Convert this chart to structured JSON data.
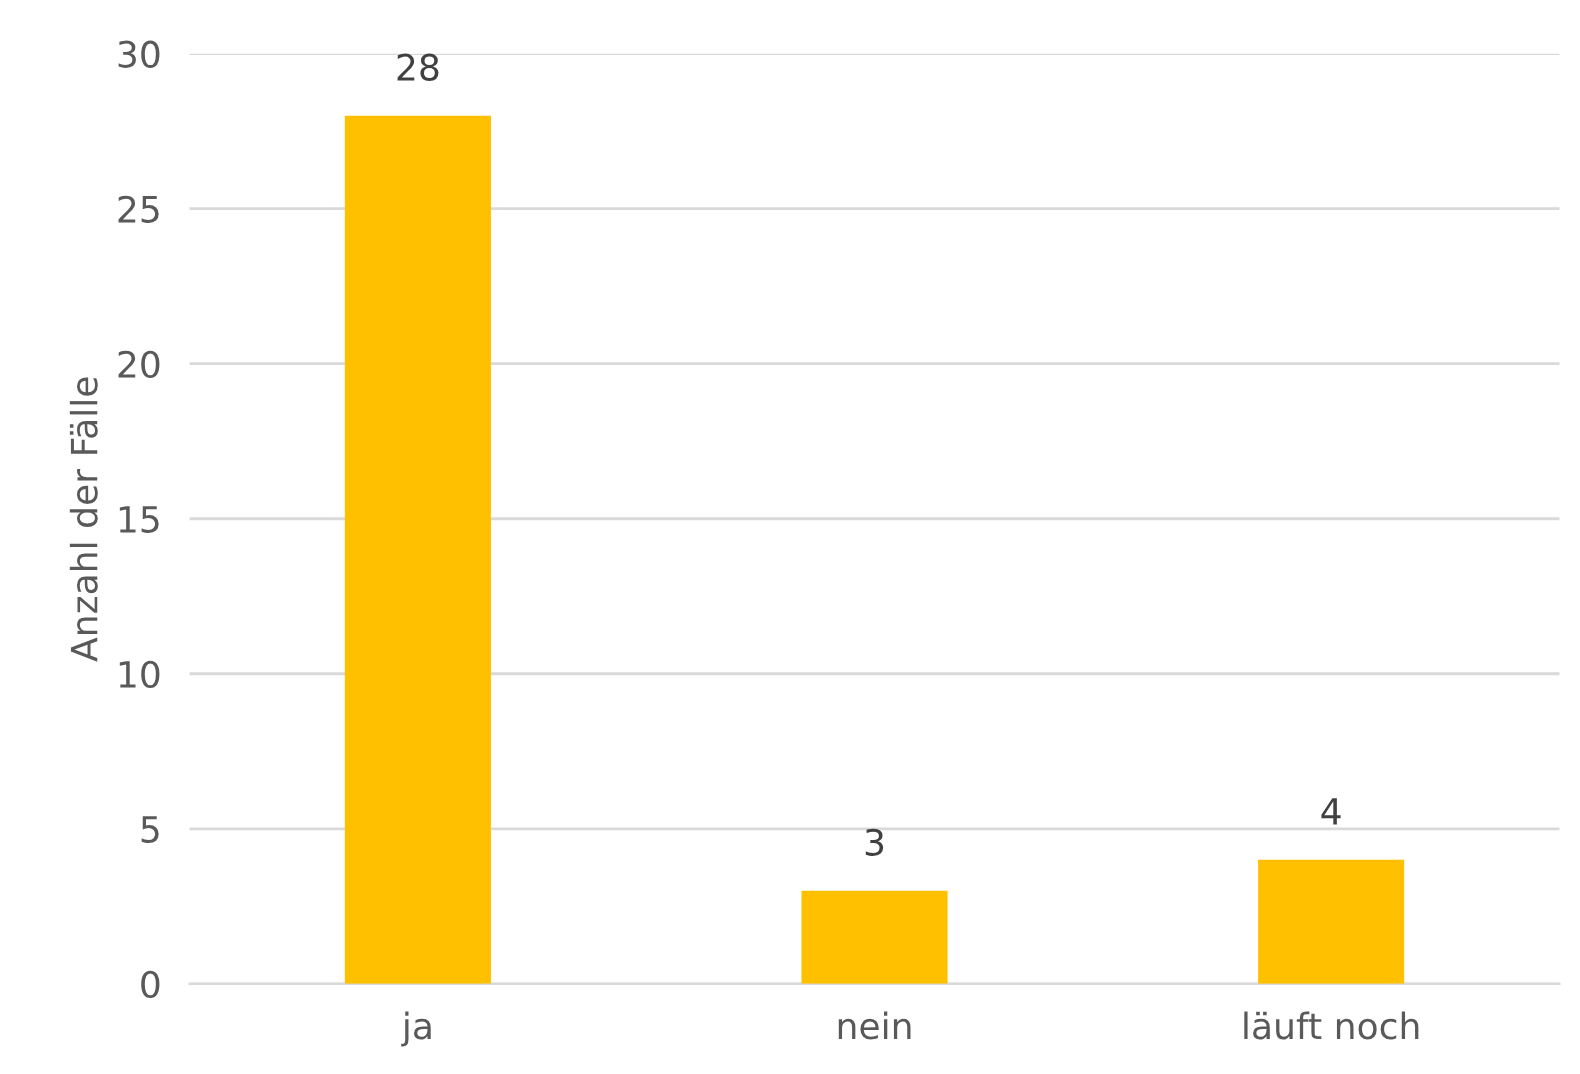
{
  "chart_data": {
    "type": "bar",
    "ylabel": "Anzahl der Fälle",
    "categories": [
      "ja",
      "nein",
      "läuft noch"
    ],
    "values": [
      28,
      3,
      4
    ],
    "color": "#ffc000",
    "ylim": [
      0,
      30
    ],
    "yticks": [
      0,
      5,
      10,
      15,
      20,
      25,
      30
    ],
    "grid": "y",
    "data_labels": true
  }
}
